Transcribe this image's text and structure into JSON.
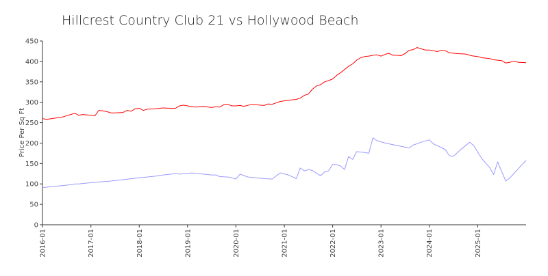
{
  "chart_data": {
    "type": "line",
    "title": "Hillcrest Country Club 21 vs Hollywood Beach",
    "xlabel": "",
    "ylabel": "Price Per Sq Ft",
    "xlim": [
      "2016-01-01",
      "2026-01-01"
    ],
    "ylim": [
      0,
      450
    ],
    "yticks": [
      0,
      50,
      100,
      150,
      200,
      250,
      300,
      350,
      400,
      450
    ],
    "xticks": [
      "2016-01",
      "2017-01",
      "2018-01",
      "2019-01",
      "2020-01",
      "2021-01",
      "2022-01",
      "2023-01",
      "2024-01",
      "2025-01"
    ],
    "grid": false,
    "legend": "none",
    "series": [
      {
        "color": "#ff0000",
        "points": [
          [
            "2016-01-01",
            260
          ],
          [
            "2016-02-01",
            258
          ],
          [
            "2016-04-01",
            261
          ],
          [
            "2016-06-01",
            264
          ],
          [
            "2016-08-01",
            270
          ],
          [
            "2016-09-01",
            273
          ],
          [
            "2016-10-01",
            268
          ],
          [
            "2016-11-01",
            270
          ],
          [
            "2017-01-01",
            268
          ],
          [
            "2017-02-01",
            267
          ],
          [
            "2017-03-01",
            280
          ],
          [
            "2017-04-01",
            279
          ],
          [
            "2017-05-01",
            277
          ],
          [
            "2017-06-01",
            274
          ],
          [
            "2017-07-01",
            274
          ],
          [
            "2017-09-01",
            275
          ],
          [
            "2017-10-01",
            280
          ],
          [
            "2017-11-01",
            278
          ],
          [
            "2017-12-01",
            284
          ],
          [
            "2018-01-01",
            285
          ],
          [
            "2018-02-01",
            280
          ],
          [
            "2018-03-01",
            283
          ],
          [
            "2018-05-01",
            284
          ],
          [
            "2018-07-01",
            286
          ],
          [
            "2018-09-01",
            285
          ],
          [
            "2018-10-01",
            285
          ],
          [
            "2018-11-01",
            291
          ],
          [
            "2018-12-01",
            293
          ],
          [
            "2019-01-01",
            291
          ],
          [
            "2019-03-01",
            288
          ],
          [
            "2019-05-01",
            290
          ],
          [
            "2019-07-01",
            287
          ],
          [
            "2019-08-01",
            289
          ],
          [
            "2019-09-01",
            288
          ],
          [
            "2019-10-01",
            294
          ],
          [
            "2019-11-01",
            295
          ],
          [
            "2019-12-01",
            291
          ],
          [
            "2020-01-01",
            291
          ],
          [
            "2020-02-01",
            292
          ],
          [
            "2020-03-01",
            290
          ],
          [
            "2020-05-01",
            295
          ],
          [
            "2020-07-01",
            293
          ],
          [
            "2020-08-01",
            292
          ],
          [
            "2020-09-01",
            296
          ],
          [
            "2020-10-01",
            295
          ],
          [
            "2020-12-01",
            302
          ],
          [
            "2021-02-01",
            305
          ],
          [
            "2021-04-01",
            307
          ],
          [
            "2021-05-01",
            310
          ],
          [
            "2021-06-01",
            317
          ],
          [
            "2021-07-01",
            320
          ],
          [
            "2021-08-01",
            332
          ],
          [
            "2021-09-01",
            340
          ],
          [
            "2021-10-01",
            343
          ],
          [
            "2021-11-01",
            350
          ],
          [
            "2021-12-01",
            353
          ],
          [
            "2022-01-01",
            357
          ],
          [
            "2022-02-01",
            366
          ],
          [
            "2022-03-01",
            372
          ],
          [
            "2022-04-01",
            380
          ],
          [
            "2022-05-01",
            388
          ],
          [
            "2022-06-01",
            394
          ],
          [
            "2022-07-01",
            403
          ],
          [
            "2022-08-01",
            409
          ],
          [
            "2022-09-01",
            412
          ],
          [
            "2022-10-01",
            413
          ],
          [
            "2022-11-01",
            415
          ],
          [
            "2022-12-01",
            416
          ],
          [
            "2023-01-01",
            413
          ],
          [
            "2023-02-01",
            417
          ],
          [
            "2023-03-01",
            420
          ],
          [
            "2023-04-01",
            415
          ],
          [
            "2023-05-01",
            415
          ],
          [
            "2023-06-01",
            414
          ],
          [
            "2023-07-01",
            419
          ],
          [
            "2023-08-01",
            427
          ],
          [
            "2023-09-01",
            429
          ],
          [
            "2023-10-01",
            434
          ],
          [
            "2023-11-01",
            431
          ],
          [
            "2023-12-01",
            428
          ],
          [
            "2024-01-01",
            428
          ],
          [
            "2024-02-01",
            426
          ],
          [
            "2024-03-01",
            424
          ],
          [
            "2024-04-01",
            427
          ],
          [
            "2024-05-01",
            426
          ],
          [
            "2024-06-01",
            421
          ],
          [
            "2024-08-01",
            419
          ],
          [
            "2024-10-01",
            418
          ],
          [
            "2024-11-01",
            415
          ],
          [
            "2024-12-01",
            413
          ],
          [
            "2025-01-01",
            412
          ],
          [
            "2025-02-01",
            409
          ],
          [
            "2025-04-01",
            407
          ],
          [
            "2025-05-01",
            404
          ],
          [
            "2025-07-01",
            402
          ],
          [
            "2025-08-01",
            396
          ],
          [
            "2025-09-01",
            398
          ],
          [
            "2025-10-01",
            401
          ],
          [
            "2025-11-01",
            398
          ],
          [
            "2026-01-01",
            397
          ]
        ]
      },
      {
        "color": "#9999ff",
        "points": [
          [
            "2016-01-01",
            91
          ],
          [
            "2016-06-01",
            96
          ],
          [
            "2016-08-01",
            98
          ],
          [
            "2016-09-01",
            100
          ],
          [
            "2016-10-01",
            100
          ],
          [
            "2017-01-01",
            103
          ],
          [
            "2017-06-01",
            107
          ],
          [
            "2018-01-01",
            115
          ],
          [
            "2018-05-01",
            119
          ],
          [
            "2018-07-01",
            122
          ],
          [
            "2018-09-01",
            124
          ],
          [
            "2018-10-01",
            126
          ],
          [
            "2018-11-01",
            124
          ],
          [
            "2019-01-01",
            126
          ],
          [
            "2019-02-01",
            127
          ],
          [
            "2019-04-01",
            125
          ],
          [
            "2019-06-01",
            123
          ],
          [
            "2019-07-01",
            122
          ],
          [
            "2019-08-01",
            122
          ],
          [
            "2019-09-01",
            118
          ],
          [
            "2019-11-01",
            117
          ],
          [
            "2019-12-01",
            115
          ],
          [
            "2020-01-01",
            112
          ],
          [
            "2020-02-01",
            124
          ],
          [
            "2020-04-01",
            117
          ],
          [
            "2020-06-01",
            115
          ],
          [
            "2020-08-01",
            113
          ],
          [
            "2020-10-01",
            112
          ],
          [
            "2020-12-01",
            127
          ],
          [
            "2021-02-01",
            122
          ],
          [
            "2021-04-01",
            113
          ],
          [
            "2021-05-01",
            139
          ],
          [
            "2021-06-01",
            132
          ],
          [
            "2021-07-01",
            135
          ],
          [
            "2021-08-01",
            133
          ],
          [
            "2021-10-01",
            120
          ],
          [
            "2021-11-01",
            129
          ],
          [
            "2021-12-01",
            132
          ],
          [
            "2022-01-01",
            148
          ],
          [
            "2022-02-01",
            147
          ],
          [
            "2022-03-01",
            144
          ],
          [
            "2022-04-01",
            135
          ],
          [
            "2022-05-01",
            167
          ],
          [
            "2022-06-01",
            160
          ],
          [
            "2022-07-01",
            179
          ],
          [
            "2022-08-01",
            178
          ],
          [
            "2022-09-01",
            177
          ],
          [
            "2022-10-01",
            175
          ],
          [
            "2022-11-01",
            213
          ],
          [
            "2022-12-01",
            206
          ],
          [
            "2023-02-01",
            200
          ],
          [
            "2023-04-01",
            196
          ],
          [
            "2023-07-01",
            190
          ],
          [
            "2023-08-01",
            188
          ],
          [
            "2023-09-01",
            195
          ],
          [
            "2023-11-01",
            202
          ],
          [
            "2024-01-01",
            208
          ],
          [
            "2024-02-01",
            198
          ],
          [
            "2024-04-01",
            189
          ],
          [
            "2024-05-01",
            184
          ],
          [
            "2024-06-01",
            169
          ],
          [
            "2024-07-01",
            168
          ],
          [
            "2024-08-01",
            177
          ],
          [
            "2024-09-01",
            186
          ],
          [
            "2024-11-01",
            202
          ],
          [
            "2024-12-01",
            194
          ],
          [
            "2025-01-01",
            178
          ],
          [
            "2025-02-01",
            162
          ],
          [
            "2025-04-01",
            140
          ],
          [
            "2025-05-01",
            123
          ],
          [
            "2025-06-01",
            154
          ],
          [
            "2025-07-01",
            130
          ],
          [
            "2025-08-01",
            107
          ],
          [
            "2025-09-01",
            115
          ],
          [
            "2026-01-01",
            158
          ]
        ]
      }
    ]
  }
}
